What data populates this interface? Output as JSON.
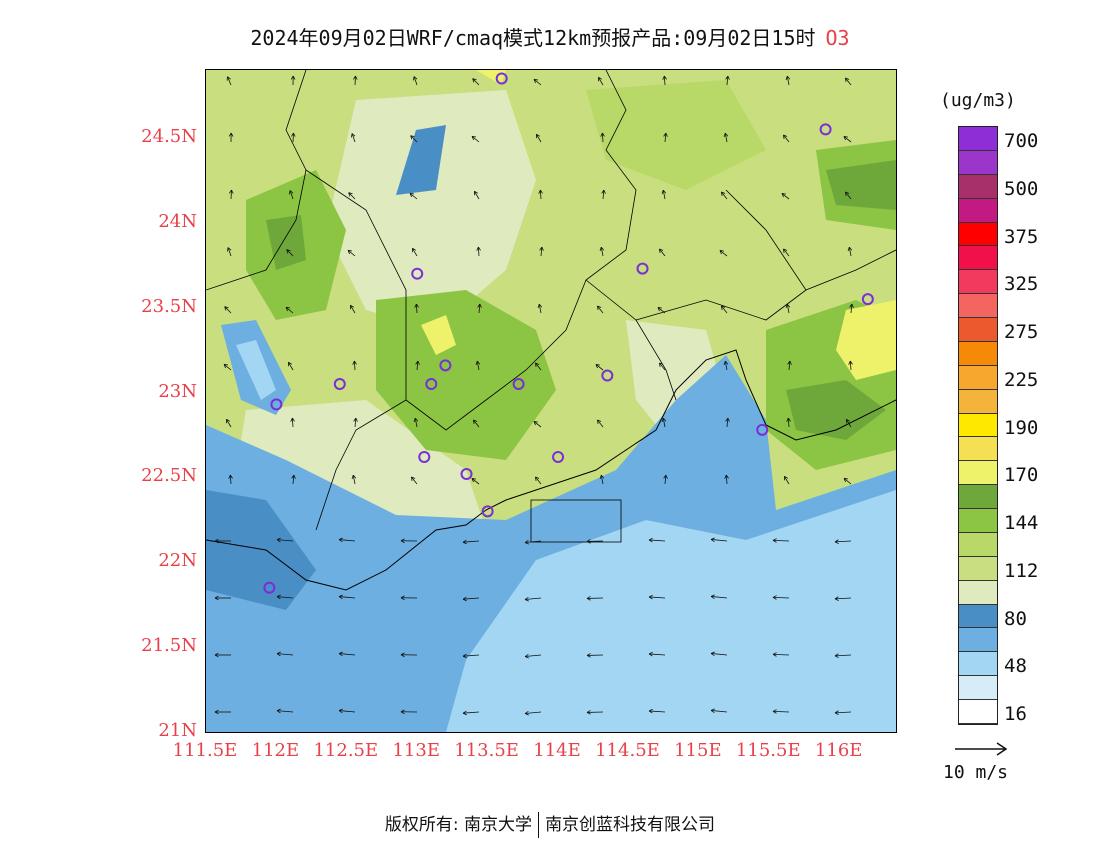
{
  "title": {
    "text": "2024年09月02日WRF/cmaq模式12km预报产品:09月02日15时",
    "pollutant": "O3"
  },
  "axes": {
    "lat_labels": [
      "24.5N",
      "24N",
      "23.5N",
      "23N",
      "22.5N",
      "22N",
      "21.5N",
      "21N"
    ],
    "lon_labels": [
      "111.5E",
      "112E",
      "112.5E",
      "113E",
      "113.5E",
      "114E",
      "114.5E",
      "115E",
      "115.5E",
      "116E"
    ]
  },
  "legend": {
    "unit": "(ug/m3)",
    "bins": [
      {
        "color": "#8e2fd6",
        "label": "700"
      },
      {
        "color": "#9c35c9",
        "label": ""
      },
      {
        "color": "#a8306a",
        "label": "500"
      },
      {
        "color": "#c21a80",
        "label": ""
      },
      {
        "color": "#ff0000",
        "label": "375"
      },
      {
        "color": "#f2104a",
        "label": ""
      },
      {
        "color": "#f23a5e",
        "label": "325"
      },
      {
        "color": "#f46460",
        "label": ""
      },
      {
        "color": "#ea5a2e",
        "label": "275"
      },
      {
        "color": "#f58a08",
        "label": ""
      },
      {
        "color": "#f7a62e",
        "label": "225"
      },
      {
        "color": "#f4b43b",
        "label": ""
      },
      {
        "color": "#ffe800",
        "label": "190"
      },
      {
        "color": "#f4e052",
        "label": ""
      },
      {
        "color": "#eef26a",
        "label": "170"
      },
      {
        "color": "#6ea83a",
        "label": ""
      },
      {
        "color": "#8cc444",
        "label": "144"
      },
      {
        "color": "#b8d868",
        "label": ""
      },
      {
        "color": "#c8de80",
        "label": "112"
      },
      {
        "color": "#dfebbe",
        "label": ""
      },
      {
        "color": "#4a8ec6",
        "label": "80"
      },
      {
        "color": "#6cafe0",
        "label": ""
      },
      {
        "color": "#a2d6f2",
        "label": "48"
      },
      {
        "color": "#d6edf8",
        "label": ""
      },
      {
        "color": "#ffffff",
        "label": "16"
      }
    ]
  },
  "wind_scale": {
    "label": "10 m/s"
  },
  "footer": {
    "left": "版权所有: 南京大学",
    "right": "南京创蓝科技有限公司"
  },
  "colors": {
    "accent_red": "#e8414a",
    "station_marker": "#7a2fd6"
  },
  "chart_data": {
    "type": "heatmap",
    "title": "2024年09月02日WRF/cmaq模式12km预报产品:09月02日15时 O3",
    "xlabel": "",
    "ylabel": "",
    "xlim": [
      111.5,
      116.4
    ],
    "ylim": [
      21.0,
      24.9
    ],
    "unit": "ug/m3",
    "stations": [
      {
        "lon": 113.6,
        "lat": 24.85
      },
      {
        "lon": 115.9,
        "lat": 24.55
      },
      {
        "lon": 113.0,
        "lat": 23.7
      },
      {
        "lon": 114.6,
        "lat": 23.73
      },
      {
        "lon": 116.2,
        "lat": 23.55
      },
      {
        "lon": 112.45,
        "lat": 23.05
      },
      {
        "lon": 112.0,
        "lat": 22.93
      },
      {
        "lon": 113.1,
        "lat": 23.05
      },
      {
        "lon": 113.2,
        "lat": 23.16
      },
      {
        "lon": 113.72,
        "lat": 23.05
      },
      {
        "lon": 114.35,
        "lat": 23.1
      },
      {
        "lon": 115.45,
        "lat": 22.78
      },
      {
        "lon": 113.05,
        "lat": 22.62
      },
      {
        "lon": 113.35,
        "lat": 22.52
      },
      {
        "lon": 114.0,
        "lat": 22.62
      },
      {
        "lon": 113.5,
        "lat": 22.3
      },
      {
        "lon": 111.95,
        "lat": 21.85
      }
    ]
  }
}
